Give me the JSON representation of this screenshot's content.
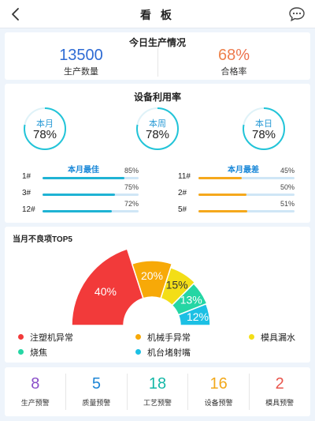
{
  "header": {
    "title": "看 板"
  },
  "production": {
    "title": "今日生产情况",
    "quantity_value": "13500",
    "quantity_label": "生产数量",
    "pass_rate_value": "68%",
    "pass_rate_label": "合格率"
  },
  "utilization": {
    "title": "设备利用率",
    "gauges": [
      {
        "label": "本月",
        "value": "78%",
        "fraction": 0.78
      },
      {
        "label": "本周",
        "value": "78%",
        "fraction": 0.78
      },
      {
        "label": "本日",
        "value": "78%",
        "fraction": 0.78
      }
    ],
    "best": {
      "title": "本月最佳",
      "color": "#1fb3d4",
      "items": [
        {
          "name": "1#",
          "pct": "85%",
          "fraction": 0.85
        },
        {
          "name": "3#",
          "pct": "75%",
          "fraction": 0.75
        },
        {
          "name": "12#",
          "pct": "72%",
          "fraction": 0.72
        }
      ]
    },
    "worst": {
      "title": "本月最差",
      "color": "#f5a81c",
      "items": [
        {
          "name": "11#",
          "pct": "45%",
          "fraction": 0.45
        },
        {
          "name": "2#",
          "pct": "50%",
          "fraction": 0.5
        },
        {
          "name": "5#",
          "pct": "51%",
          "fraction": 0.51
        }
      ]
    }
  },
  "defects": {
    "title": "当月不良项TOP5"
  },
  "chart_data": {
    "type": "pie",
    "subtype": "half-donut",
    "title": "当月不良项TOP5",
    "categories": [
      "注塑机异常",
      "机械手异常",
      "模具漏水",
      "烧焦",
      "机台堵射嘴"
    ],
    "values": [
      40,
      20,
      15,
      13,
      12
    ],
    "labels": [
      "40%",
      "20%",
      "15%",
      "13%",
      "12%"
    ],
    "colors": [
      "#f23a3a",
      "#f7a908",
      "#f3de17",
      "#25d6a4",
      "#1cc0e4"
    ],
    "legend_placement": "bottom"
  },
  "alerts": [
    {
      "value": "8",
      "label": "生产预警",
      "color": "#8a4fc9"
    },
    {
      "value": "5",
      "label": "质量预警",
      "color": "#1e86d6"
    },
    {
      "value": "18",
      "label": "工艺预警",
      "color": "#16b8a7"
    },
    {
      "value": "16",
      "label": "设备预警",
      "color": "#f2a91c"
    },
    {
      "value": "2",
      "label": "模具预警",
      "color": "#e8564d"
    }
  ]
}
